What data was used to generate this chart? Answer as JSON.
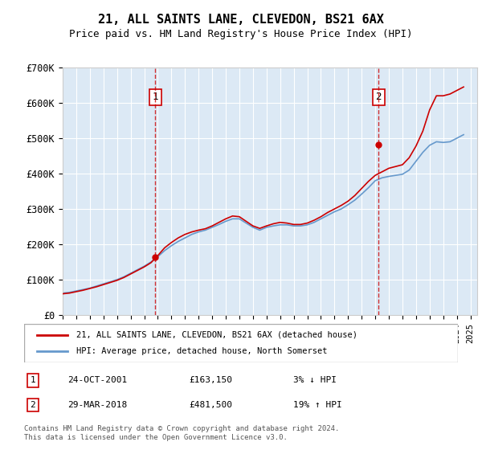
{
  "title": "21, ALL SAINTS LANE, CLEVEDON, BS21 6AX",
  "subtitle": "Price paid vs. HM Land Registry's House Price Index (HPI)",
  "xlabel": "",
  "ylabel": "",
  "ylim": [
    0,
    700000
  ],
  "yticks": [
    0,
    100000,
    200000,
    300000,
    400000,
    500000,
    600000,
    700000
  ],
  "ytick_labels": [
    "£0",
    "£100K",
    "£200K",
    "£300K",
    "£400K",
    "£500K",
    "£600K",
    "£700K"
  ],
  "bg_color": "#dce9f5",
  "plot_bg": "#dce9f5",
  "grid_color": "#ffffff",
  "line1_color": "#cc0000",
  "line2_color": "#6699cc",
  "sale1_x": 2001.81,
  "sale1_y": 163150,
  "sale1_label": "1",
  "sale2_x": 2018.23,
  "sale2_y": 481500,
  "sale2_label": "2",
  "legend1": "21, ALL SAINTS LANE, CLEVEDON, BS21 6AX (detached house)",
  "legend2": "HPI: Average price, detached house, North Somerset",
  "table_rows": [
    {
      "num": "1",
      "date": "24-OCT-2001",
      "price": "£163,150",
      "hpi": "3% ↓ HPI"
    },
    {
      "num": "2",
      "date": "29-MAR-2018",
      "price": "£481,500",
      "hpi": "19% ↑ HPI"
    }
  ],
  "footer": "Contains HM Land Registry data © Crown copyright and database right 2024.\nThis data is licensed under the Open Government Licence v3.0.",
  "hpi_x": [
    1995.0,
    1995.5,
    1996.0,
    1996.5,
    1997.0,
    1997.5,
    1998.0,
    1998.5,
    1999.0,
    1999.5,
    2000.0,
    2000.5,
    2001.0,
    2001.5,
    2002.0,
    2002.5,
    2003.0,
    2003.5,
    2004.0,
    2004.5,
    2005.0,
    2005.5,
    2006.0,
    2006.5,
    2007.0,
    2007.5,
    2008.0,
    2008.5,
    2009.0,
    2009.5,
    2010.0,
    2010.5,
    2011.0,
    2011.5,
    2012.0,
    2012.5,
    2013.0,
    2013.5,
    2014.0,
    2014.5,
    2015.0,
    2015.5,
    2016.0,
    2016.5,
    2017.0,
    2017.5,
    2018.0,
    2018.5,
    2019.0,
    2019.5,
    2020.0,
    2020.5,
    2021.0,
    2021.5,
    2022.0,
    2022.5,
    2023.0,
    2023.5,
    2024.0,
    2024.5
  ],
  "hpi_y": [
    62000,
    64000,
    68000,
    72000,
    76000,
    82000,
    88000,
    94000,
    100000,
    108000,
    118000,
    128000,
    138000,
    150000,
    165000,
    182000,
    196000,
    208000,
    218000,
    228000,
    235000,
    240000,
    248000,
    256000,
    265000,
    272000,
    272000,
    260000,
    248000,
    240000,
    248000,
    252000,
    255000,
    255000,
    252000,
    252000,
    255000,
    262000,
    272000,
    282000,
    292000,
    300000,
    312000,
    325000,
    342000,
    360000,
    380000,
    388000,
    392000,
    395000,
    398000,
    410000,
    435000,
    460000,
    480000,
    490000,
    488000,
    490000,
    500000,
    510000
  ],
  "price_x": [
    1995.0,
    1995.5,
    1996.0,
    1996.5,
    1997.0,
    1997.5,
    1998.0,
    1998.5,
    1999.0,
    1999.5,
    2000.0,
    2000.5,
    2001.0,
    2001.5,
    2002.0,
    2002.5,
    2003.0,
    2003.5,
    2004.0,
    2004.5,
    2005.0,
    2005.5,
    2006.0,
    2006.5,
    2007.0,
    2007.5,
    2008.0,
    2008.5,
    2009.0,
    2009.5,
    2010.0,
    2010.5,
    2011.0,
    2011.5,
    2012.0,
    2012.5,
    2013.0,
    2013.5,
    2014.0,
    2014.5,
    2015.0,
    2015.5,
    2016.0,
    2016.5,
    2017.0,
    2017.5,
    2018.0,
    2018.5,
    2019.0,
    2019.5,
    2020.0,
    2020.5,
    2021.0,
    2021.5,
    2022.0,
    2022.5,
    2023.0,
    2023.5,
    2024.0,
    2024.5
  ],
  "price_y": [
    60000,
    62000,
    66000,
    70000,
    75000,
    80000,
    86000,
    92000,
    98000,
    106000,
    116000,
    126000,
    136000,
    148000,
    168000,
    190000,
    205000,
    218000,
    228000,
    235000,
    240000,
    244000,
    252000,
    262000,
    272000,
    280000,
    278000,
    265000,
    252000,
    245000,
    252000,
    258000,
    262000,
    260000,
    256000,
    256000,
    260000,
    268000,
    278000,
    290000,
    300000,
    310000,
    322000,
    338000,
    358000,
    378000,
    395000,
    405000,
    415000,
    420000,
    425000,
    445000,
    478000,
    520000,
    580000,
    620000,
    620000,
    625000,
    635000,
    645000
  ],
  "xlim": [
    1995.0,
    2025.5
  ],
  "xticks": [
    1995,
    1996,
    1997,
    1998,
    1999,
    2000,
    2001,
    2002,
    2003,
    2004,
    2005,
    2006,
    2007,
    2008,
    2009,
    2010,
    2011,
    2012,
    2013,
    2014,
    2015,
    2016,
    2017,
    2018,
    2019,
    2020,
    2021,
    2022,
    2023,
    2024,
    2025
  ]
}
